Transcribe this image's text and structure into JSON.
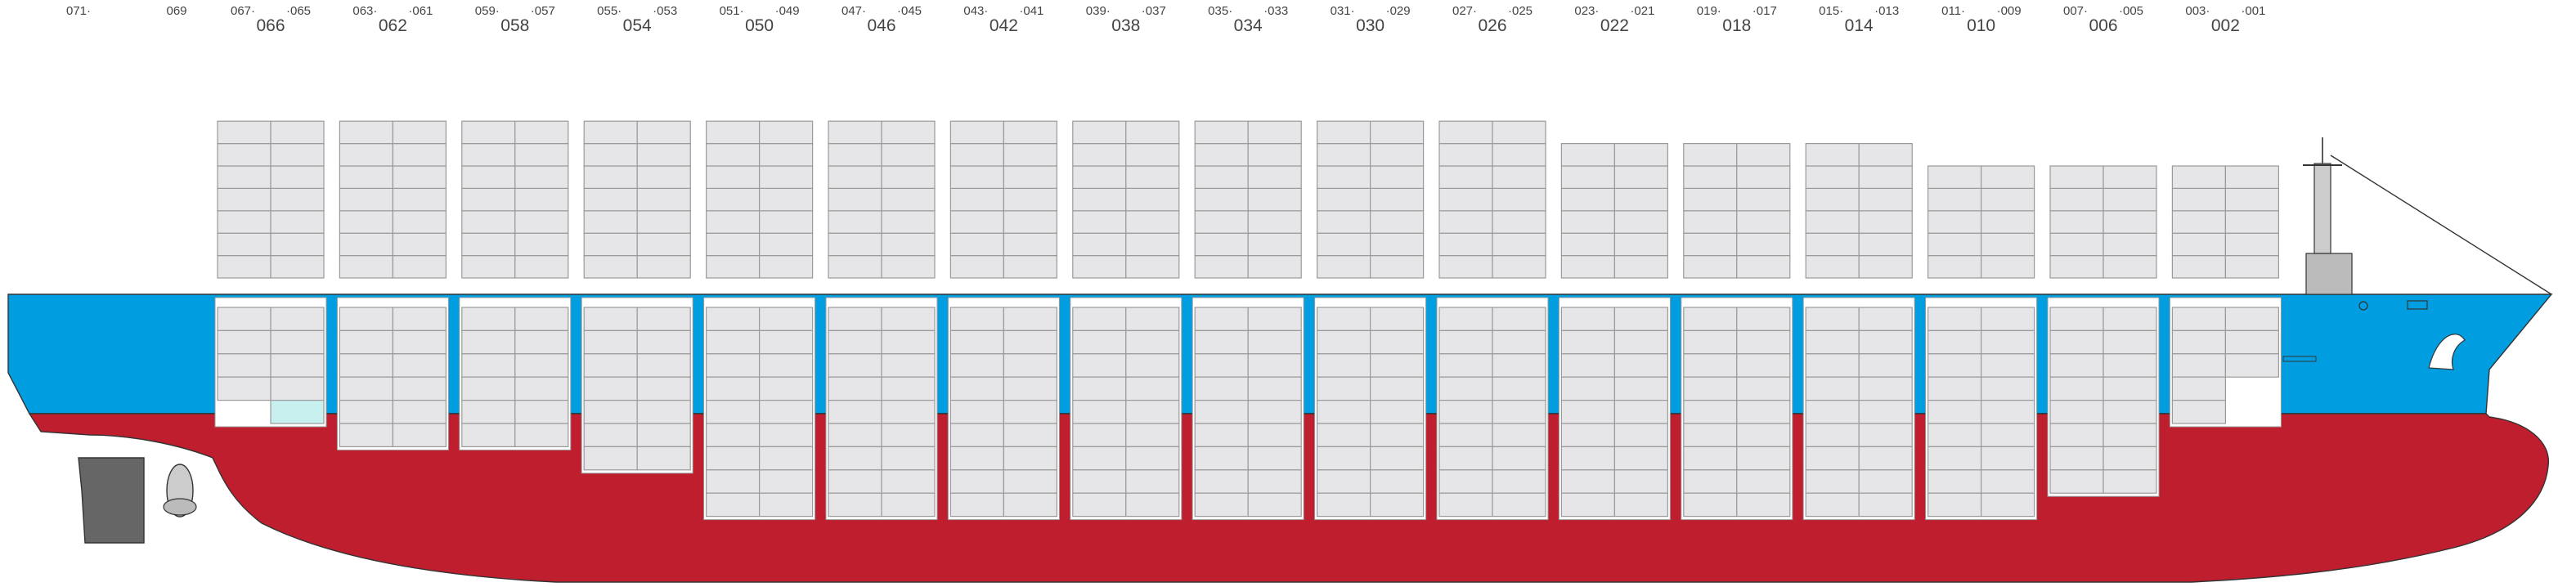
{
  "extra_labels": [
    "071·",
    "069"
  ],
  "bays": [
    {
      "label": "066",
      "fore": "067·",
      "aft": "·065"
    },
    {
      "label": "062",
      "fore": "063·",
      "aft": "·061"
    },
    {
      "label": "058",
      "fore": "059·",
      "aft": "·057"
    },
    {
      "label": "054",
      "fore": "055·",
      "aft": "·053"
    },
    {
      "label": "050",
      "fore": "051·",
      "aft": "·049"
    },
    {
      "label": "046",
      "fore": "047·",
      "aft": "·045"
    },
    {
      "label": "042",
      "fore": "043·",
      "aft": "·041"
    },
    {
      "label": "038",
      "fore": "039·",
      "aft": "·037"
    },
    {
      "label": "034",
      "fore": "035·",
      "aft": "·033"
    },
    {
      "label": "030",
      "fore": "031·",
      "aft": "·029"
    },
    {
      "label": "026",
      "fore": "027·",
      "aft": "·025"
    },
    {
      "label": "022",
      "fore": "023·",
      "aft": "·021"
    },
    {
      "label": "018",
      "fore": "019·",
      "aft": "·017"
    },
    {
      "label": "014",
      "fore": "015·",
      "aft": "·013"
    },
    {
      "label": "010",
      "fore": "011·",
      "aft": "·009"
    },
    {
      "label": "006",
      "fore": "007·",
      "aft": "·005"
    },
    {
      "label": "002",
      "fore": "003·",
      "aft": "·001"
    }
  ]
}
